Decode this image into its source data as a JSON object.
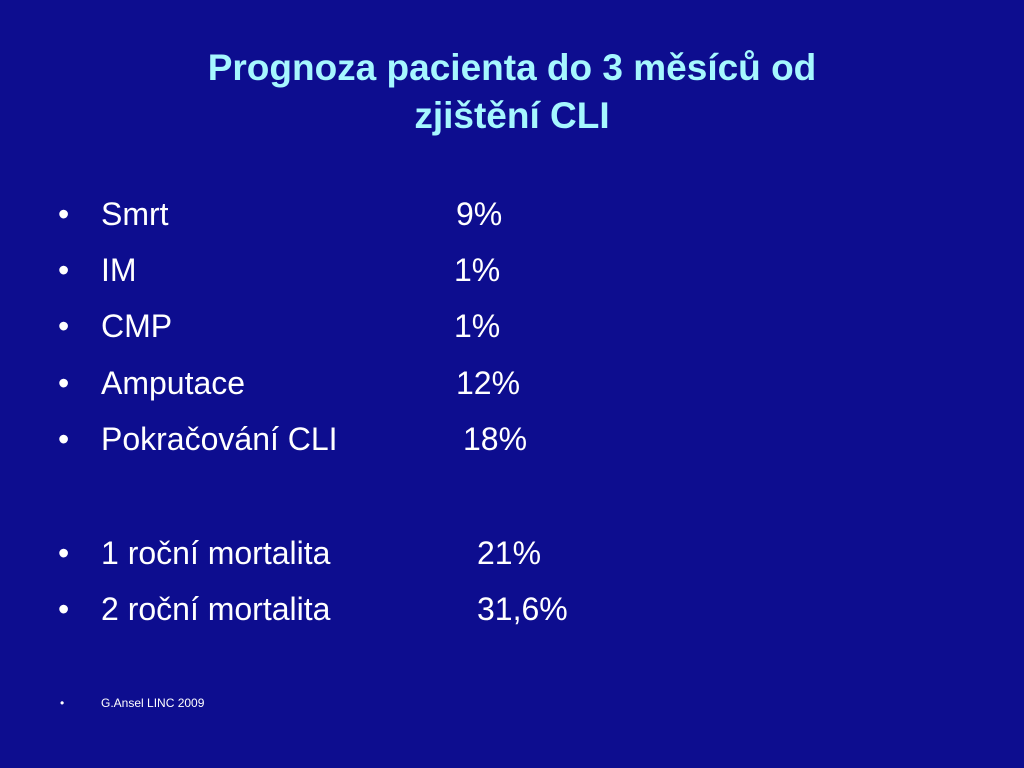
{
  "slide": {
    "title_line1": "Prognoza pacienta do 3 měsíců od",
    "title_line2": "zjištění CLI",
    "bullet_symbol": "•",
    "outcomes": [
      {
        "label": "Smrt",
        "value": "9%"
      },
      {
        "label": "IM",
        "value": "1%"
      },
      {
        "label": "CMP",
        "value": "1%"
      },
      {
        "label": "Amputace",
        "value": "12%"
      },
      {
        "label": "Pokračování CLI",
        "value": "18%"
      }
    ],
    "mortality": [
      {
        "label": "1 roční mortalita",
        "value": "21%"
      },
      {
        "label": "2 roční mortalita",
        "value": "31,6%"
      }
    ],
    "source": "G.Ansel LINC 2009",
    "colors": {
      "background": "#0d0d8f",
      "title": "#a6f7ff",
      "text": "#ffffff"
    }
  }
}
